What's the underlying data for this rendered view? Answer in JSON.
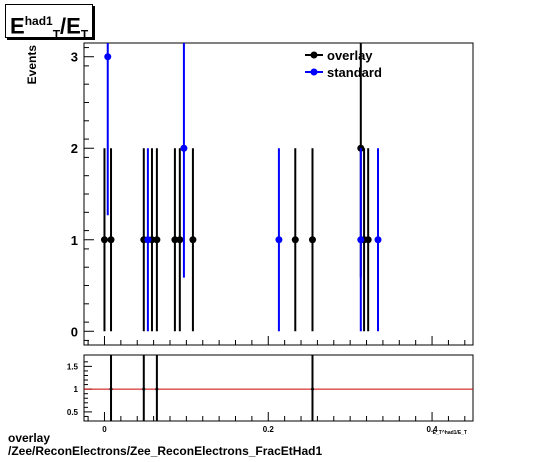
{
  "title": {
    "base": "E",
    "sup": "had1",
    "sub": "T",
    "sep": "/",
    "base2": "E",
    "sub2": "T"
  },
  "footer": {
    "line1": "overlay",
    "line2": "/Zee/ReconElectrons/Zee_ReconElectrons_FracEtHad1"
  },
  "colors": {
    "overlay": "#000000",
    "standard": "#0000ff",
    "ratio_line": "#cc0000"
  },
  "chart_data": [
    {
      "type": "scatter",
      "ylabel": "Events",
      "xlim": [
        -0.025,
        0.45
      ],
      "ylim": [
        -0.15,
        3.15
      ],
      "xticks": [
        {
          "v": 0,
          "label": "0"
        },
        {
          "v": 0.2,
          "label": "0.2"
        },
        {
          "v": 0.4,
          "label": "0.4"
        }
      ],
      "yticks": [
        {
          "v": 0,
          "label": "0"
        },
        {
          "v": 1,
          "label": "1"
        },
        {
          "v": 2,
          "label": "2"
        },
        {
          "v": 3,
          "label": "3"
        }
      ],
      "legend": {
        "position": "top-right",
        "entries": [
          "overlay",
          "standard"
        ]
      },
      "series": [
        {
          "name": "overlay",
          "color": "#000000",
          "points": [
            [
              0.0,
              1
            ],
            [
              0.008,
              1
            ],
            [
              0.048,
              1
            ],
            [
              0.058,
              1
            ],
            [
              0.064,
              1
            ],
            [
              0.086,
              1
            ],
            [
              0.092,
              1
            ],
            [
              0.108,
              1
            ],
            [
              0.233,
              1
            ],
            [
              0.254,
              1
            ],
            [
              0.313,
              2
            ],
            [
              0.317,
              1
            ],
            [
              0.322,
              1
            ]
          ]
        },
        {
          "name": "standard",
          "color": "#0000ff",
          "points": [
            [
              0.004,
              3
            ],
            [
              0.053,
              1
            ],
            [
              0.097,
              2
            ],
            [
              0.213,
              1
            ],
            [
              0.313,
              1
            ],
            [
              0.334,
              1
            ]
          ]
        }
      ]
    },
    {
      "type": "scatter",
      "xlim": [
        -0.025,
        0.45
      ],
      "ylim": [
        0.3,
        1.75
      ],
      "xlabel": "E_T^had1/E_T",
      "xticks": [
        {
          "v": 0,
          "label": "0"
        },
        {
          "v": 0.2,
          "label": "0.2"
        },
        {
          "v": 0.4,
          "label": "0.4"
        }
      ],
      "yticks": [
        {
          "v": 0.5,
          "label": "0.5"
        },
        {
          "v": 1,
          "label": "1"
        },
        {
          "v": 1.5,
          "label": "1.5"
        }
      ],
      "reference_line": 1,
      "points": [
        [
          0.008,
          1
        ],
        [
          0.048,
          1
        ],
        [
          0.064,
          1
        ],
        [
          0.254,
          1
        ]
      ]
    }
  ]
}
